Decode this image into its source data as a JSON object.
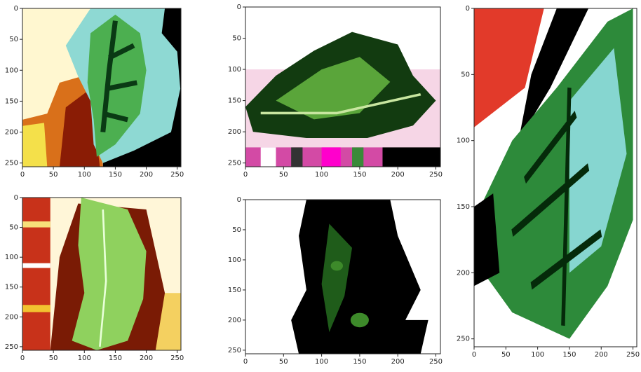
{
  "chart_data": [
    {
      "type": "image",
      "xlim": [
        0,
        256
      ],
      "ylim": [
        256,
        0
      ],
      "xticks": [
        0,
        50,
        100,
        150,
        200,
        250
      ],
      "yticks": [
        0,
        50,
        100,
        150,
        200,
        250
      ]
    },
    {
      "type": "image",
      "xlim": [
        0,
        256
      ],
      "ylim": [
        256,
        0
      ],
      "xticks": [
        0,
        50,
        100,
        150,
        200,
        250
      ],
      "yticks": [
        0,
        50,
        100,
        150,
        200,
        250
      ]
    },
    {
      "type": "image",
      "xlim": [
        0,
        256
      ],
      "ylim": [
        256,
        0
      ],
      "xticks": [
        0,
        50,
        100,
        150,
        200,
        250
      ],
      "yticks": [
        0,
        50,
        100,
        150,
        200,
        250
      ]
    },
    {
      "type": "image",
      "xlim": [
        0,
        256
      ],
      "ylim": [
        256,
        0
      ],
      "xticks": [
        0,
        50,
        100,
        150,
        200,
        250
      ],
      "yticks": [
        0,
        50,
        100,
        150,
        200,
        250
      ]
    },
    {
      "type": "image",
      "xlim": [
        0,
        256
      ],
      "ylim": [
        256,
        0
      ],
      "xticks": [
        0,
        50,
        100,
        150,
        200,
        250
      ],
      "yticks": [
        0,
        50,
        100,
        150,
        200,
        250
      ]
    }
  ]
}
